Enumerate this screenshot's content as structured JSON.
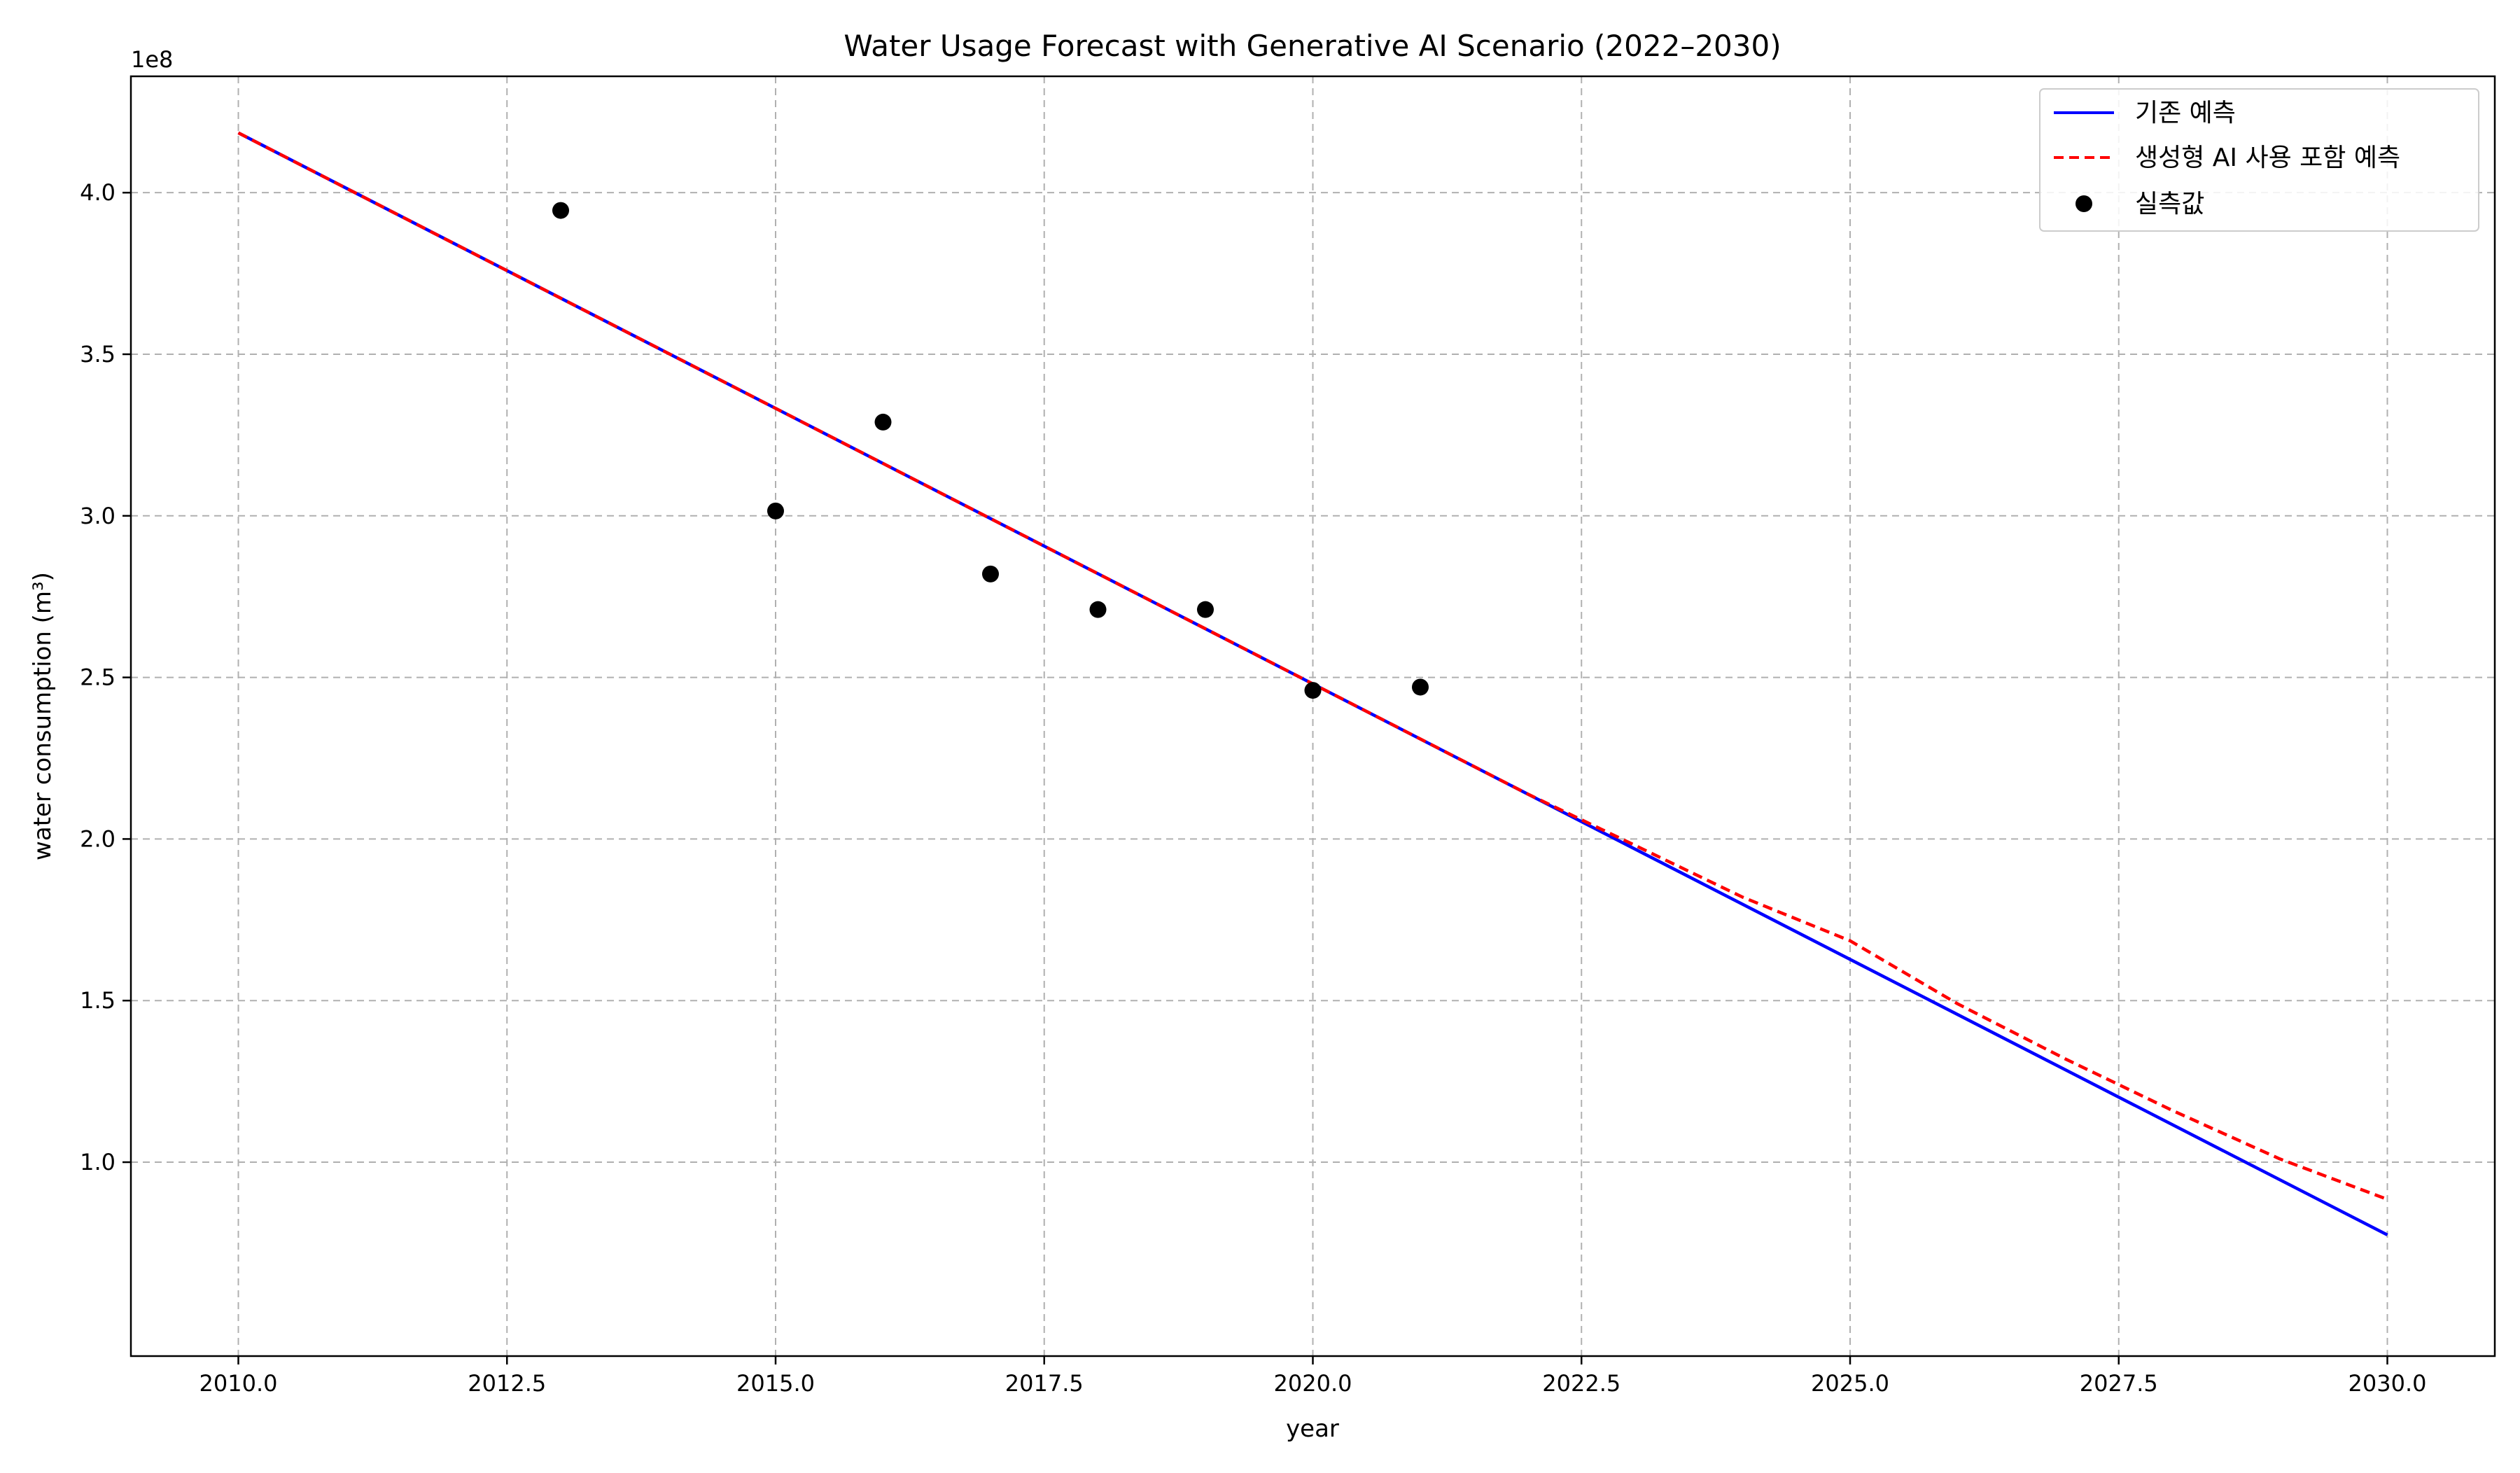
{
  "chart_data": {
    "type": "line",
    "title": "Water Usage Forecast with Generative AI Scenario (2022–2030)",
    "xlabel": "year",
    "ylabel": "water consumption (m³)",
    "y_offset_label": "1e8",
    "xlim": [
      2009.0,
      2031.0
    ],
    "ylim": [
      0.4,
      4.36
    ],
    "y_scale_note": "values in units of 1e8",
    "x_ticks": [
      2010.0,
      2012.5,
      2015.0,
      2017.5,
      2020.0,
      2022.5,
      2025.0,
      2027.5,
      2030.0
    ],
    "x_tick_labels": [
      "2010.0",
      "2012.5",
      "2015.0",
      "2017.5",
      "2020.0",
      "2022.5",
      "2025.0",
      "2027.5",
      "2030.0"
    ],
    "y_ticks": [
      1.0,
      1.5,
      2.0,
      2.5,
      3.0,
      3.5,
      4.0
    ],
    "y_tick_labels": [
      "1.0",
      "1.5",
      "2.0",
      "2.5",
      "3.0",
      "3.5",
      "4.0"
    ],
    "grid": true,
    "legend_position": "top-right",
    "series": [
      {
        "name": "기존 예측",
        "style": "solid",
        "color": "#0000ff",
        "x": [
          2010,
          2030
        ],
        "y": [
          4.185,
          0.775
        ]
      },
      {
        "name": "생성형 AI 사용 포함 예측",
        "style": "dashed",
        "color": "#ff0000",
        "x": [
          2010,
          2022,
          2023,
          2024,
          2025,
          2026,
          2027,
          2028,
          2029,
          2030
        ],
        "y": [
          4.185,
          2.139,
          1.98,
          1.82,
          1.685,
          1.49,
          1.32,
          1.16,
          1.01,
          0.885
        ]
      },
      {
        "name": "실측값",
        "style": "scatter",
        "color": "#000000",
        "x": [
          2013,
          2015,
          2016,
          2017,
          2018,
          2019,
          2020,
          2021
        ],
        "y": [
          3.945,
          3.015,
          3.29,
          2.82,
          2.71,
          2.71,
          2.46,
          2.47
        ]
      }
    ]
  }
}
